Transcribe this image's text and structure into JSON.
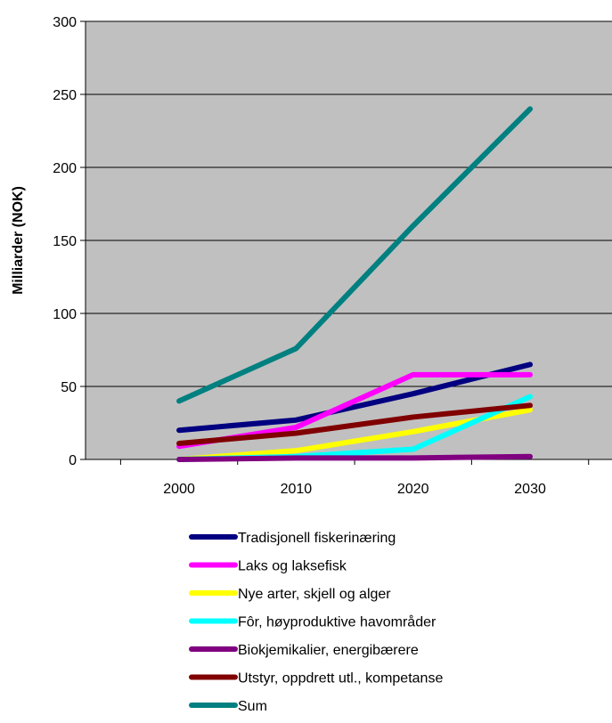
{
  "chart_data": {
    "type": "line",
    "title": "",
    "xlabel": "",
    "ylabel": "Milliarder (NOK)",
    "categories": [
      "2000",
      "2010",
      "2020",
      "2030"
    ],
    "ylim": [
      0,
      300
    ],
    "yticks": [
      0,
      50,
      100,
      150,
      200,
      250,
      300
    ],
    "grid": "horizontal",
    "plot_background": "#c0c0c0",
    "legend_position": "bottom",
    "series": [
      {
        "name": "Tradisjonell fiskerinæring",
        "color": "#000080",
        "values": [
          20,
          27,
          45,
          65
        ]
      },
      {
        "name": "Laks og laksefisk",
        "color": "#ff00ff",
        "values": [
          9,
          22,
          58,
          58
        ]
      },
      {
        "name": "Nye arter, skjell og alger",
        "color": "#ffff00",
        "values": [
          0,
          6,
          19,
          34
        ]
      },
      {
        "name": "Fôr, høyproduktive havområder",
        "color": "#00ffff",
        "values": [
          0,
          2,
          7,
          43
        ]
      },
      {
        "name": "Biokjemikalier, energibærere",
        "color": "#800080",
        "values": [
          0,
          1,
          1,
          2
        ]
      },
      {
        "name": "Utstyr, oppdrett utl., kompetanse",
        "color": "#800000",
        "values": [
          11,
          18,
          29,
          37
        ]
      },
      {
        "name": "Sum",
        "color": "#008080",
        "values": [
          40,
          76,
          160,
          240
        ]
      }
    ]
  }
}
